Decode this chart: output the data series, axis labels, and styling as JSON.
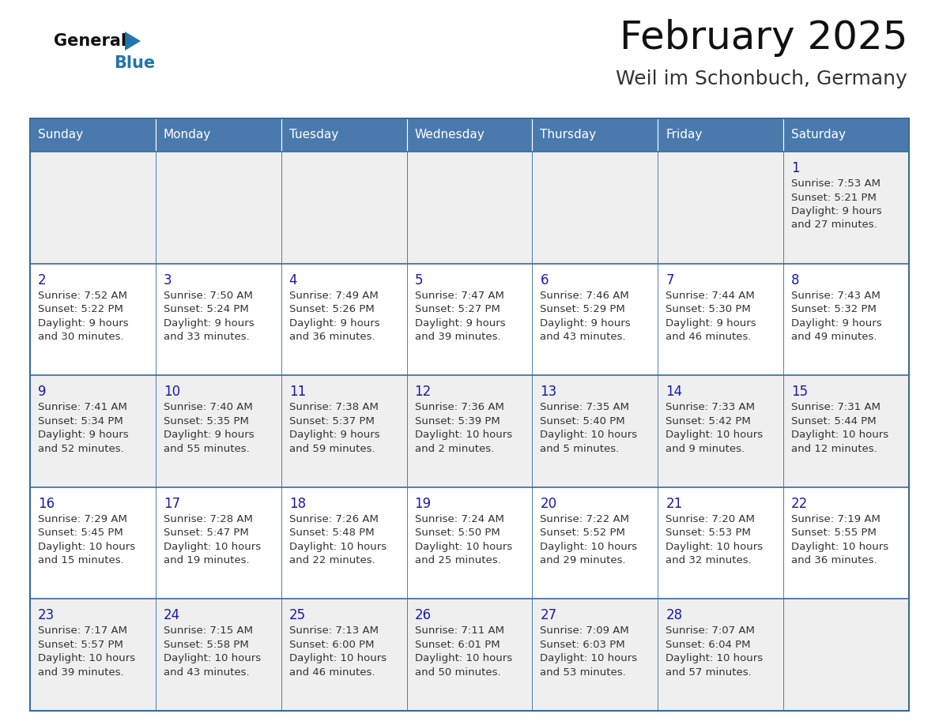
{
  "title": "February 2025",
  "subtitle": "Weil im Schonbuch, Germany",
  "days_of_week": [
    "Sunday",
    "Monday",
    "Tuesday",
    "Wednesday",
    "Thursday",
    "Friday",
    "Saturday"
  ],
  "header_bg": "#4a7aad",
  "header_text": "#ffffff",
  "cell_bg_light": "#efefef",
  "cell_bg_white": "#ffffff",
  "cell_text": "#333333",
  "day_number_color": "#1a1aaa",
  "border_color": "#3a6a9a",
  "title_color": "#111111",
  "subtitle_color": "#333333",
  "logo_general_color": "#111111",
  "logo_blue_color": "#2176ae",
  "calendar": [
    [
      null,
      null,
      null,
      null,
      null,
      null,
      {
        "day": 1,
        "sunrise": "7:53 AM",
        "sunset": "5:21 PM",
        "daylight": "9 hours",
        "daylight2": "and 27 minutes."
      }
    ],
    [
      {
        "day": 2,
        "sunrise": "7:52 AM",
        "sunset": "5:22 PM",
        "daylight": "9 hours",
        "daylight2": "and 30 minutes."
      },
      {
        "day": 3,
        "sunrise": "7:50 AM",
        "sunset": "5:24 PM",
        "daylight": "9 hours",
        "daylight2": "and 33 minutes."
      },
      {
        "day": 4,
        "sunrise": "7:49 AM",
        "sunset": "5:26 PM",
        "daylight": "9 hours",
        "daylight2": "and 36 minutes."
      },
      {
        "day": 5,
        "sunrise": "7:47 AM",
        "sunset": "5:27 PM",
        "daylight": "9 hours",
        "daylight2": "and 39 minutes."
      },
      {
        "day": 6,
        "sunrise": "7:46 AM",
        "sunset": "5:29 PM",
        "daylight": "9 hours",
        "daylight2": "and 43 minutes."
      },
      {
        "day": 7,
        "sunrise": "7:44 AM",
        "sunset": "5:30 PM",
        "daylight": "9 hours",
        "daylight2": "and 46 minutes."
      },
      {
        "day": 8,
        "sunrise": "7:43 AM",
        "sunset": "5:32 PM",
        "daylight": "9 hours",
        "daylight2": "and 49 minutes."
      }
    ],
    [
      {
        "day": 9,
        "sunrise": "7:41 AM",
        "sunset": "5:34 PM",
        "daylight": "9 hours",
        "daylight2": "and 52 minutes."
      },
      {
        "day": 10,
        "sunrise": "7:40 AM",
        "sunset": "5:35 PM",
        "daylight": "9 hours",
        "daylight2": "and 55 minutes."
      },
      {
        "day": 11,
        "sunrise": "7:38 AM",
        "sunset": "5:37 PM",
        "daylight": "9 hours",
        "daylight2": "and 59 minutes."
      },
      {
        "day": 12,
        "sunrise": "7:36 AM",
        "sunset": "5:39 PM",
        "daylight": "10 hours",
        "daylight2": "and 2 minutes."
      },
      {
        "day": 13,
        "sunrise": "7:35 AM",
        "sunset": "5:40 PM",
        "daylight": "10 hours",
        "daylight2": "and 5 minutes."
      },
      {
        "day": 14,
        "sunrise": "7:33 AM",
        "sunset": "5:42 PM",
        "daylight": "10 hours",
        "daylight2": "and 9 minutes."
      },
      {
        "day": 15,
        "sunrise": "7:31 AM",
        "sunset": "5:44 PM",
        "daylight": "10 hours",
        "daylight2": "and 12 minutes."
      }
    ],
    [
      {
        "day": 16,
        "sunrise": "7:29 AM",
        "sunset": "5:45 PM",
        "daylight": "10 hours",
        "daylight2": "and 15 minutes."
      },
      {
        "day": 17,
        "sunrise": "7:28 AM",
        "sunset": "5:47 PM",
        "daylight": "10 hours",
        "daylight2": "and 19 minutes."
      },
      {
        "day": 18,
        "sunrise": "7:26 AM",
        "sunset": "5:48 PM",
        "daylight": "10 hours",
        "daylight2": "and 22 minutes."
      },
      {
        "day": 19,
        "sunrise": "7:24 AM",
        "sunset": "5:50 PM",
        "daylight": "10 hours",
        "daylight2": "and 25 minutes."
      },
      {
        "day": 20,
        "sunrise": "7:22 AM",
        "sunset": "5:52 PM",
        "daylight": "10 hours",
        "daylight2": "and 29 minutes."
      },
      {
        "day": 21,
        "sunrise": "7:20 AM",
        "sunset": "5:53 PM",
        "daylight": "10 hours",
        "daylight2": "and 32 minutes."
      },
      {
        "day": 22,
        "sunrise": "7:19 AM",
        "sunset": "5:55 PM",
        "daylight": "10 hours",
        "daylight2": "and 36 minutes."
      }
    ],
    [
      {
        "day": 23,
        "sunrise": "7:17 AM",
        "sunset": "5:57 PM",
        "daylight": "10 hours",
        "daylight2": "and 39 minutes."
      },
      {
        "day": 24,
        "sunrise": "7:15 AM",
        "sunset": "5:58 PM",
        "daylight": "10 hours",
        "daylight2": "and 43 minutes."
      },
      {
        "day": 25,
        "sunrise": "7:13 AM",
        "sunset": "6:00 PM",
        "daylight": "10 hours",
        "daylight2": "and 46 minutes."
      },
      {
        "day": 26,
        "sunrise": "7:11 AM",
        "sunset": "6:01 PM",
        "daylight": "10 hours",
        "daylight2": "and 50 minutes."
      },
      {
        "day": 27,
        "sunrise": "7:09 AM",
        "sunset": "6:03 PM",
        "daylight": "10 hours",
        "daylight2": "and 53 minutes."
      },
      {
        "day": 28,
        "sunrise": "7:07 AM",
        "sunset": "6:04 PM",
        "daylight": "10 hours",
        "daylight2": "and 57 minutes."
      },
      null
    ]
  ]
}
